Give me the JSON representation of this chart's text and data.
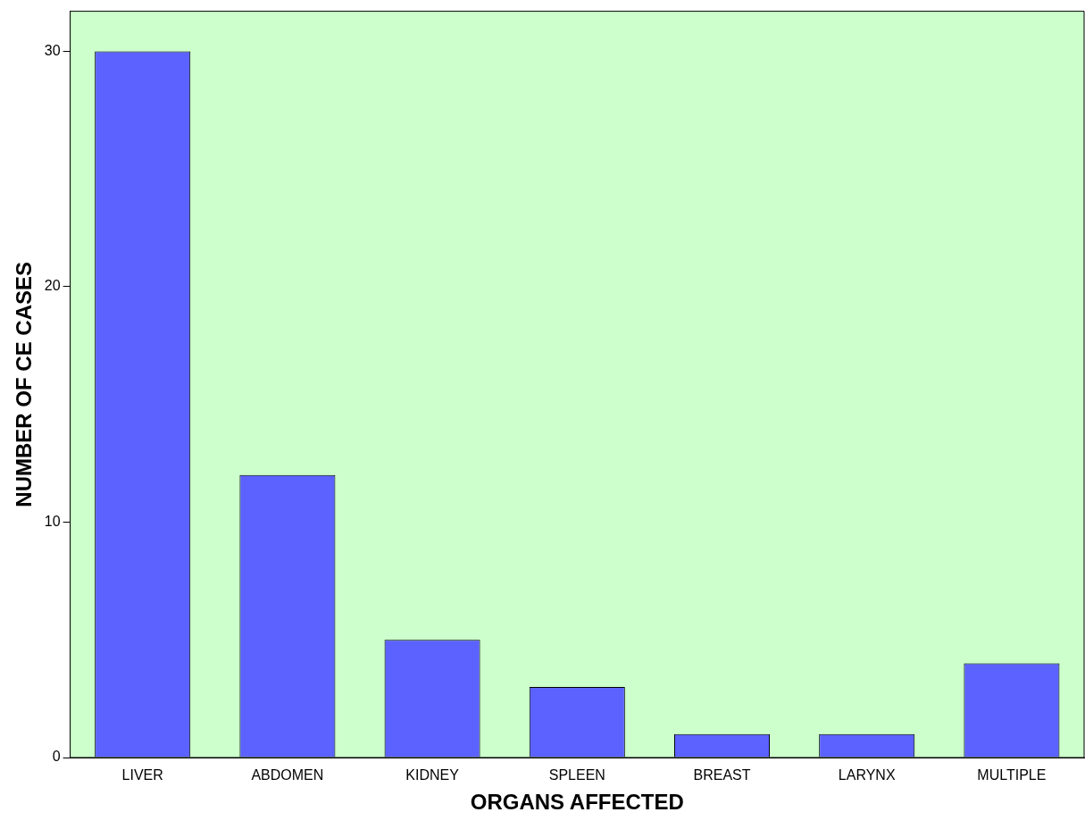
{
  "chart_data": {
    "type": "bar",
    "xlabel": "ORGANS AFFECTED",
    "ylabel": "NUMBER OF CE CASES",
    "categories": [
      "LIVER",
      "ABDOMEN",
      "KIDNEY",
      "SPLEEN",
      "BREAST",
      "LARYNX",
      "MULTIPLE"
    ],
    "values": [
      30,
      12,
      5,
      3,
      1,
      1,
      4
    ],
    "color": "#5c62ff",
    "ylim": [
      0,
      31.7
    ],
    "yticks": [
      0,
      10,
      20,
      30
    ],
    "grid": false,
    "legend": false
  }
}
